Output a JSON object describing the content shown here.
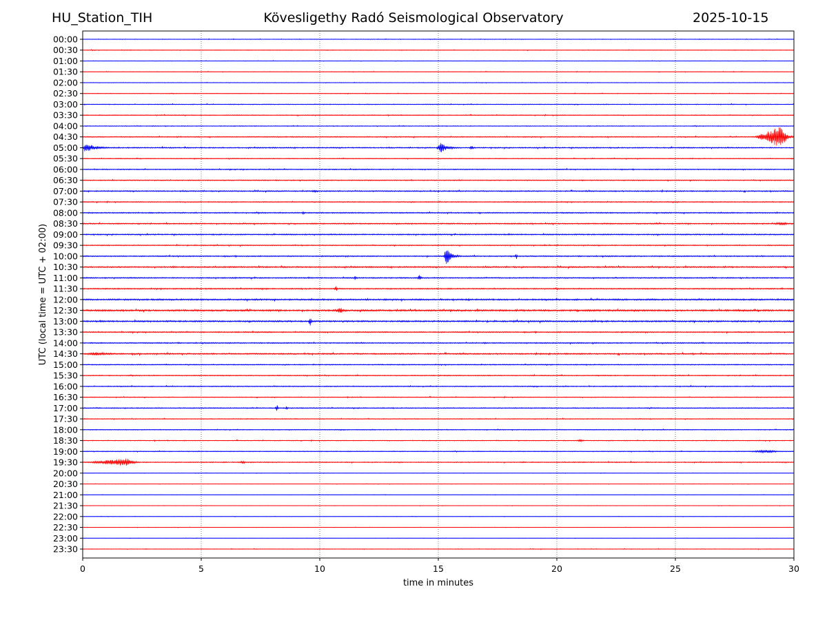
{
  "header": {
    "station": "HU_Station_TIH",
    "observatory": "Kövesligethy Radó Seismological Observatory",
    "date": "2025-10-15"
  },
  "chart_data": {
    "type": "line",
    "title": "Kövesligethy Radó Seismological Observatory",
    "xlabel": "time in minutes",
    "ylabel": "UTC (local time = UTC + 02:00)",
    "xlim": [
      0,
      30
    ],
    "xticks": [
      "0",
      "5",
      "10",
      "15",
      "20",
      "25",
      "30"
    ],
    "grid": "vertical dotted at each x tick",
    "colors": {
      "even_row": "#0000ff",
      "odd_row": "#ff0000"
    },
    "rows": [
      "00:00",
      "00:30",
      "01:00",
      "01:30",
      "02:00",
      "02:30",
      "03:00",
      "03:30",
      "04:00",
      "04:30",
      "05:00",
      "05:30",
      "06:00",
      "06:30",
      "07:00",
      "07:30",
      "08:00",
      "08:30",
      "09:00",
      "09:30",
      "10:00",
      "10:30",
      "11:00",
      "11:30",
      "12:00",
      "12:30",
      "13:00",
      "13:30",
      "14:00",
      "14:30",
      "15:00",
      "15:30",
      "16:00",
      "16:30",
      "17:00",
      "17:30",
      "18:00",
      "18:30",
      "19:00",
      "19:30",
      "20:00",
      "20:30",
      "21:00",
      "21:30",
      "22:00",
      "22:30",
      "23:00",
      "23:30"
    ],
    "noise_level": [
      0.3,
      0.3,
      0.25,
      0.25,
      0.3,
      0.3,
      0.4,
      0.4,
      0.4,
      0.5,
      0.6,
      0.4,
      0.5,
      0.5,
      0.6,
      0.5,
      0.6,
      0.6,
      0.6,
      0.5,
      0.6,
      0.7,
      0.6,
      0.6,
      0.8,
      0.9,
      0.8,
      0.6,
      0.6,
      0.7,
      0.5,
      0.5,
      0.5,
      0.4,
      0.5,
      0.4,
      0.4,
      0.4,
      0.4,
      0.5,
      0.2,
      0.2,
      0.2,
      0.2,
      0.2,
      0.2,
      0.2,
      0.3
    ],
    "events": [
      {
        "row": "04:30",
        "start": 28.3,
        "peak": 29.5,
        "end": 30,
        "amp": 3.6
      },
      {
        "row": "05:00",
        "start": 0,
        "peak": 0.1,
        "end": 1.5,
        "amp": 1.6
      },
      {
        "row": "05:00",
        "start": 14.9,
        "peak": 15.1,
        "end": 16.0,
        "amp": 1.7
      },
      {
        "row": "05:00",
        "start": 16.3,
        "peak": 16.4,
        "end": 16.7,
        "amp": 0.8
      },
      {
        "row": "07:00",
        "start": 9.6,
        "peak": 9.8,
        "end": 10.0,
        "amp": 0.6
      },
      {
        "row": "08:00",
        "start": 9.2,
        "peak": 9.3,
        "end": 9.5,
        "amp": 0.6
      },
      {
        "row": "08:30",
        "start": 29.0,
        "peak": 29.6,
        "end": 30,
        "amp": 0.6
      },
      {
        "row": "10:00",
        "start": 15.2,
        "peak": 15.35,
        "end": 16.0,
        "amp": 2.8
      },
      {
        "row": "10:00",
        "start": 18.2,
        "peak": 18.3,
        "end": 18.4,
        "amp": 0.9
      },
      {
        "row": "11:00",
        "start": 11.4,
        "peak": 11.5,
        "end": 11.6,
        "amp": 0.8
      },
      {
        "row": "11:00",
        "start": 14.1,
        "peak": 14.2,
        "end": 14.4,
        "amp": 1.1
      },
      {
        "row": "11:30",
        "start": 10.6,
        "peak": 10.7,
        "end": 10.8,
        "amp": 1.1
      },
      {
        "row": "12:30",
        "start": 10.5,
        "peak": 10.9,
        "end": 11.4,
        "amp": 0.9
      },
      {
        "row": "13:00",
        "start": 9.5,
        "peak": 9.6,
        "end": 9.8,
        "amp": 1.5
      },
      {
        "row": "14:30",
        "start": 0,
        "peak": 0.5,
        "end": 2.8,
        "amp": 0.6
      },
      {
        "row": "17:00",
        "start": 8.1,
        "peak": 8.2,
        "end": 8.3,
        "amp": 1.2
      },
      {
        "row": "17:00",
        "start": 8.55,
        "peak": 8.6,
        "end": 8.7,
        "amp": 0.9
      },
      {
        "row": "18:30",
        "start": 20.8,
        "peak": 21.0,
        "end": 21.3,
        "amp": 0.5
      },
      {
        "row": "19:00",
        "start": 27.8,
        "peak": 29.0,
        "end": 30,
        "amp": 0.5
      },
      {
        "row": "19:30",
        "start": 0,
        "peak": 1.9,
        "end": 2.6,
        "amp": 1.3
      },
      {
        "row": "19:30",
        "start": 6.5,
        "peak": 6.8,
        "end": 7.1,
        "amp": 0.5
      }
    ]
  }
}
